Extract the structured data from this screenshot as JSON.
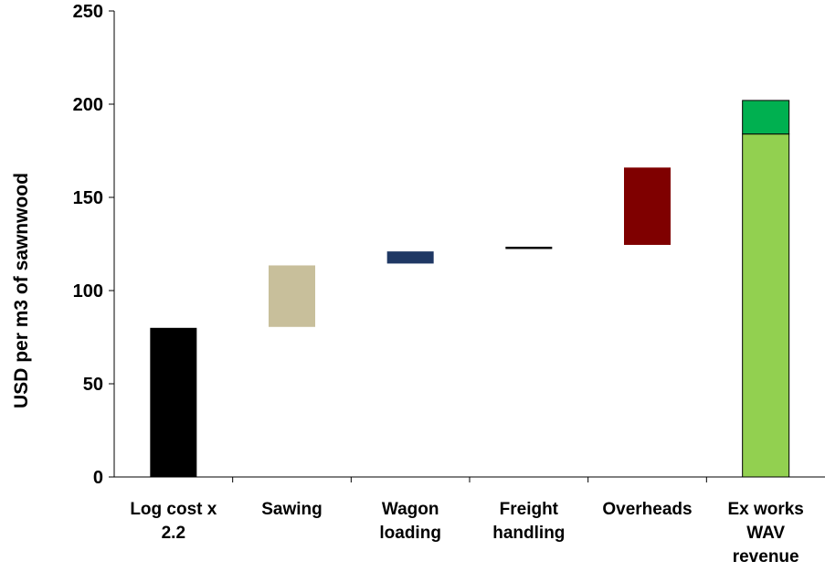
{
  "chart_data": {
    "type": "bar",
    "subtype": "waterfall",
    "title": "",
    "xlabel": "",
    "ylabel": "USD per m3 of sawnwood",
    "ylim": [
      0,
      250
    ],
    "yticks": [
      0,
      50,
      100,
      150,
      200,
      250
    ],
    "grid": false,
    "legend": "none",
    "categories": [
      [
        "Log cost x",
        "2.2"
      ],
      [
        "Sawing"
      ],
      [
        "Wagon",
        "loading"
      ],
      [
        "Freight",
        "handling"
      ],
      [
        "Overheads"
      ],
      [
        "Ex works",
        "WAV",
        "revenue"
      ]
    ],
    "segments": [
      {
        "category_index": 0,
        "start": 0,
        "end": 80,
        "color": "#000000",
        "outline": false
      },
      {
        "category_index": 1,
        "start": 80.5,
        "end": 113.5,
        "color": "#c8bf9b",
        "outline": false
      },
      {
        "category_index": 2,
        "start": 114.5,
        "end": 121,
        "color": "#1f3864",
        "outline": false
      },
      {
        "category_index": 3,
        "start": 122.3,
        "end": 123.5,
        "color": "#000000",
        "outline": false
      },
      {
        "category_index": 4,
        "start": 124.5,
        "end": 166,
        "color": "#7f0000",
        "outline": false
      },
      {
        "category_index": 5,
        "start": 0,
        "end": 184,
        "color": "#92d050",
        "outline": true
      },
      {
        "category_index": 5,
        "start": 184,
        "end": 202,
        "color": "#00b050",
        "outline": true
      }
    ]
  }
}
